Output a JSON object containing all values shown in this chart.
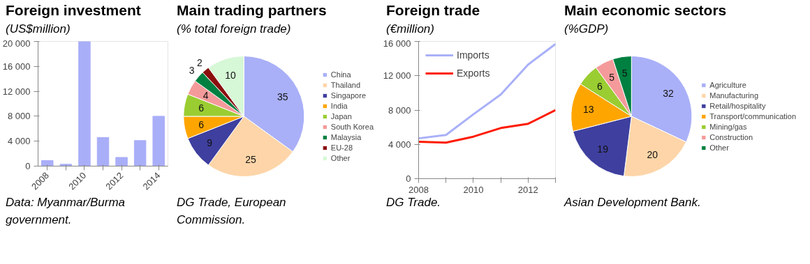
{
  "chart_data": [
    {
      "type": "bar",
      "title": "Foreign investment",
      "subtitle": "(US$million)",
      "categories": [
        "2008",
        null,
        "2010",
        null,
        "2012",
        null,
        "2014"
      ],
      "values": [
        900,
        300,
        20000,
        4600,
        1400,
        4100,
        8000
      ],
      "color": "#a9aef8",
      "ylim": [
        0,
        20000
      ],
      "yticks": [
        0,
        {
          "value": 4000,
          "label": "4 000"
        },
        {
          "value": 8000,
          "label": "8 000"
        },
        {
          "value": 12000,
          "label": "12 000"
        },
        {
          "value": 16000,
          "label": "16 000"
        },
        {
          "value": 20000,
          "label": "20 000"
        }
      ],
      "grid": false,
      "annotations": [
        "Data: Myanmar/Burma government."
      ]
    },
    {
      "type": "pie",
      "title": "Main trading partners",
      "subtitle": "(% total foreign trade)",
      "categories": [
        "China",
        "Thailand",
        "Singapore",
        "India",
        "Japan",
        "South Korea",
        "Malaysia",
        "EU-28",
        "Other"
      ],
      "values": [
        35,
        25,
        9,
        6,
        6,
        4,
        3,
        2,
        10
      ],
      "colors": [
        "#a9b0f8",
        "#fdd5a8",
        "#3f3f9f",
        "#ffa500",
        "#9acd32",
        "#f59a9a",
        "#008040",
        "#8b0f0f",
        "#d6f8d6"
      ],
      "data_labels": true,
      "legend": "right",
      "annotations": [
        "DG Trade, European Commission."
      ]
    },
    {
      "type": "line",
      "title": "Foreign trade",
      "subtitle": "(€million)",
      "x": [
        2008,
        2009,
        2010,
        2011,
        2012,
        2013
      ],
      "series": [
        {
          "name": "Imports",
          "color": "#a9b0f8",
          "values": [
            4700,
            5100,
            7500,
            9800,
            13300,
            15700
          ]
        },
        {
          "name": "Exports",
          "color": "#ff1a00",
          "values": [
            4300,
            4200,
            4900,
            5900,
            6400,
            8000
          ]
        }
      ],
      "xlim": [
        2008,
        2013
      ],
      "xticks": [
        2008,
        {
          "value": 2009,
          "label": null
        },
        2010,
        {
          "value": 2011,
          "label": null
        },
        2012,
        {
          "value": 2013,
          "label": null
        }
      ],
      "ylim": [
        0,
        16000
      ],
      "yticks": [
        0,
        {
          "value": 4000,
          "label": "4 000"
        },
        {
          "value": 8000,
          "label": "8 000"
        },
        {
          "value": 12000,
          "label": "12 000"
        },
        {
          "value": 16000,
          "label": "16 000"
        }
      ],
      "grid": false,
      "legend": "top left",
      "marker": "none",
      "line_style": "solid",
      "annotations": [
        "DG Trade."
      ]
    },
    {
      "type": "pie",
      "title": "Main economic sectors",
      "subtitle": "(%GDP)",
      "categories": [
        "Agriculture",
        "Manufacturing",
        "Retail/hospitality",
        "Transport/communication",
        "Mining/gas",
        "Construction",
        "Other"
      ],
      "values": [
        32,
        20,
        19,
        13,
        6,
        5,
        5
      ],
      "colors": [
        "#a9b0f8",
        "#fdd5a8",
        "#3f3f9f",
        "#ffa500",
        "#9acd32",
        "#f59a9a",
        "#008040"
      ],
      "data_labels": true,
      "legend": "right",
      "annotations": [
        "Asian Development Bank."
      ]
    }
  ]
}
